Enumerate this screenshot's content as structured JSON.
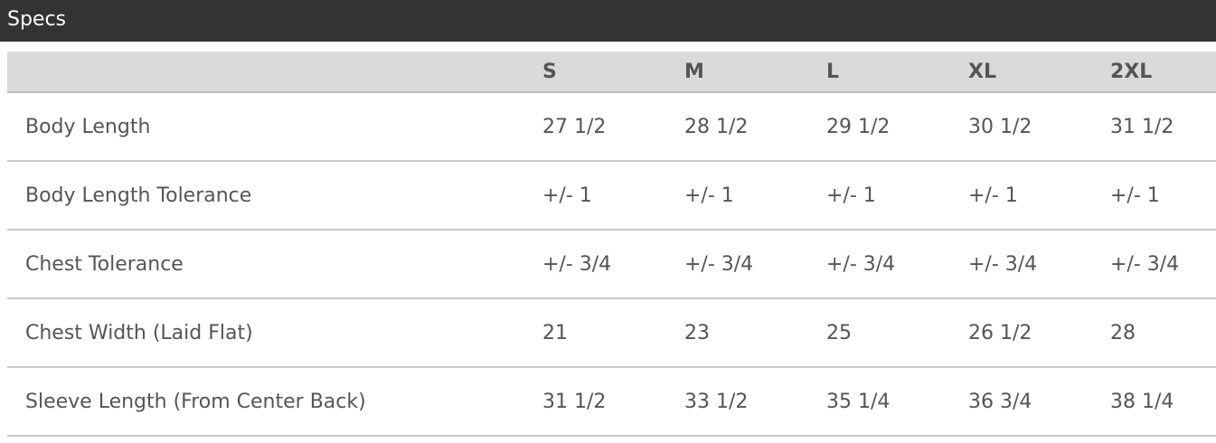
{
  "title": "Specs",
  "columns": [
    "",
    "S",
    "M",
    "L",
    "XL",
    "2XL"
  ],
  "rows": [
    {
      "label": "Body Length",
      "values": [
        "27 1/2",
        "28 1/2",
        "29 1/2",
        "30 1/2",
        "31 1/2"
      ]
    },
    {
      "label": "Body Length Tolerance",
      "values": [
        "+/- 1",
        "+/- 1",
        "+/- 1",
        "+/- 1",
        "+/- 1"
      ]
    },
    {
      "label": "Chest Tolerance",
      "values": [
        "+/- 3/4",
        "+/- 3/4",
        "+/- 3/4",
        "+/- 3/4",
        "+/- 3/4"
      ]
    },
    {
      "label": "Chest Width (Laid Flat)",
      "values": [
        "21",
        "23",
        "25",
        "26 1/2",
        "28"
      ]
    },
    {
      "label": "Sleeve Length (From Center Back)",
      "values": [
        "31 1/2",
        "33 1/2",
        "35 1/4",
        "36 3/4",
        "38 1/4"
      ]
    }
  ]
}
